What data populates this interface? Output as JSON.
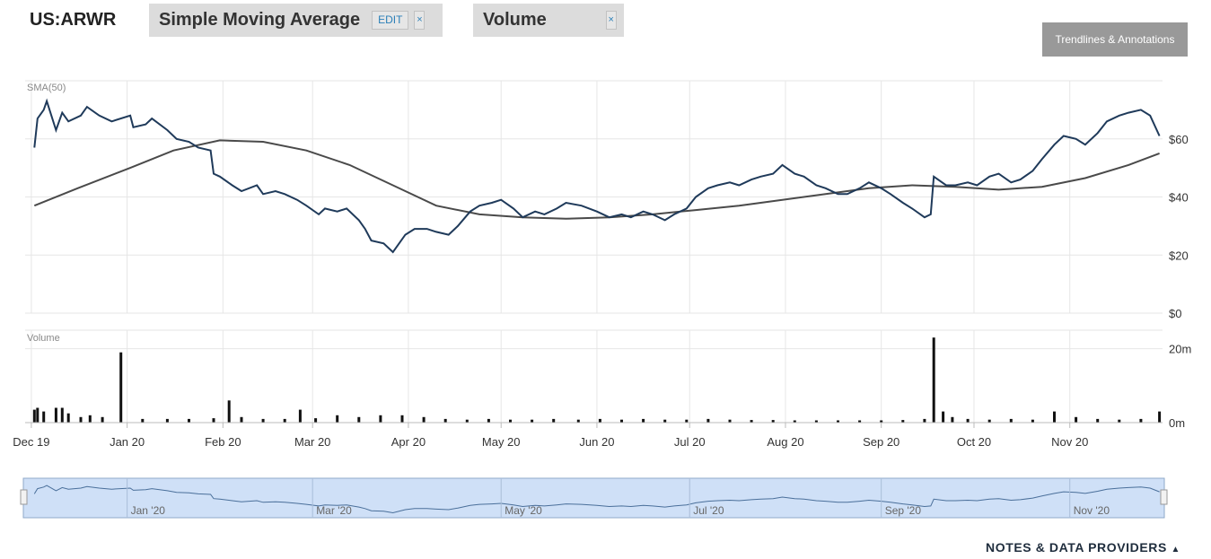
{
  "header": {
    "ticker": "US:ARWR",
    "sma_pill": {
      "label": "Simple Moving Average",
      "edit_label": "EDIT",
      "remove_label": "×"
    },
    "volume_pill": {
      "label": "Volume",
      "remove_label": "×"
    },
    "trendlines_button": "Trendlines & Annotations"
  },
  "footer": {
    "notes_link": "NOTES & DATA PROVIDERS"
  },
  "colors": {
    "price_line": "#1f3a5a",
    "sma_line": "#4a4a4a",
    "volume_bar": "#111111",
    "navigator_fill": "#cfe0f7",
    "navigator_border": "#8fa8c8",
    "grid": "#e6e6e6"
  },
  "chart_data": [
    {
      "type": "line",
      "panel": "price",
      "panel_label": "SMA(50)",
      "x_tick_labels": [
        "Dec 19",
        "Jan 20",
        "Feb 20",
        "Mar 20",
        "Apr 20",
        "May 20",
        "Jun 20",
        "Jul 20",
        "Aug 20",
        "Sep 20",
        "Oct 20",
        "Nov 20"
      ],
      "y_tick_labels": [
        "$0",
        "$20",
        "$40",
        "$60"
      ],
      "ylim": [
        0,
        80
      ],
      "grid": true,
      "series": [
        {
          "key": "price",
          "points": [
            [
              "2019-12-02",
              57
            ],
            [
              "2019-12-03",
              67
            ],
            [
              "2019-12-05",
              70
            ],
            [
              "2019-12-06",
              73
            ],
            [
              "2019-12-09",
              63
            ],
            [
              "2019-12-11",
              69
            ],
            [
              "2019-12-13",
              66
            ],
            [
              "2019-12-17",
              68
            ],
            [
              "2019-12-19",
              71
            ],
            [
              "2019-12-23",
              68
            ],
            [
              "2019-12-27",
              66
            ],
            [
              "2020-01-02",
              68
            ],
            [
              "2020-01-03",
              64
            ],
            [
              "2020-01-07",
              65
            ],
            [
              "2020-01-09",
              67
            ],
            [
              "2020-01-14",
              63
            ],
            [
              "2020-01-17",
              60
            ],
            [
              "2020-01-21",
              59
            ],
            [
              "2020-01-24",
              57
            ],
            [
              "2020-01-28",
              56
            ],
            [
              "2020-01-29",
              48
            ],
            [
              "2020-01-31",
              47
            ],
            [
              "2020-02-04",
              44
            ],
            [
              "2020-02-07",
              42
            ],
            [
              "2020-02-12",
              44
            ],
            [
              "2020-02-14",
              41
            ],
            [
              "2020-02-18",
              42
            ],
            [
              "2020-02-21",
              41
            ],
            [
              "2020-02-25",
              39
            ],
            [
              "2020-02-28",
              37
            ],
            [
              "2020-03-03",
              34
            ],
            [
              "2020-03-05",
              36
            ],
            [
              "2020-03-09",
              35
            ],
            [
              "2020-03-12",
              36
            ],
            [
              "2020-03-16",
              32
            ],
            [
              "2020-03-18",
              29
            ],
            [
              "2020-03-20",
              25
            ],
            [
              "2020-03-24",
              24
            ],
            [
              "2020-03-27",
              21
            ],
            [
              "2020-03-31",
              27
            ],
            [
              "2020-04-03",
              29
            ],
            [
              "2020-04-07",
              29
            ],
            [
              "2020-04-10",
              28
            ],
            [
              "2020-04-14",
              27
            ],
            [
              "2020-04-17",
              30
            ],
            [
              "2020-04-21",
              35
            ],
            [
              "2020-04-24",
              37
            ],
            [
              "2020-04-28",
              38
            ],
            [
              "2020-05-01",
              39
            ],
            [
              "2020-05-05",
              36
            ],
            [
              "2020-05-08",
              33
            ],
            [
              "2020-05-12",
              35
            ],
            [
              "2020-05-15",
              34
            ],
            [
              "2020-05-19",
              36
            ],
            [
              "2020-05-22",
              38
            ],
            [
              "2020-05-27",
              37
            ],
            [
              "2020-06-01",
              35
            ],
            [
              "2020-06-05",
              33
            ],
            [
              "2020-06-09",
              34
            ],
            [
              "2020-06-12",
              33
            ],
            [
              "2020-06-16",
              35
            ],
            [
              "2020-06-19",
              34
            ],
            [
              "2020-06-23",
              32
            ],
            [
              "2020-06-26",
              34
            ],
            [
              "2020-06-30",
              36
            ],
            [
              "2020-07-03",
              40
            ],
            [
              "2020-07-07",
              43
            ],
            [
              "2020-07-10",
              44
            ],
            [
              "2020-07-14",
              45
            ],
            [
              "2020-07-17",
              44
            ],
            [
              "2020-07-21",
              46
            ],
            [
              "2020-07-24",
              47
            ],
            [
              "2020-07-28",
              48
            ],
            [
              "2020-07-31",
              51
            ],
            [
              "2020-08-04",
              48
            ],
            [
              "2020-08-07",
              47
            ],
            [
              "2020-08-11",
              44
            ],
            [
              "2020-08-14",
              43
            ],
            [
              "2020-08-18",
              41
            ],
            [
              "2020-08-21",
              41
            ],
            [
              "2020-08-25",
              43
            ],
            [
              "2020-08-28",
              45
            ],
            [
              "2020-09-01",
              43
            ],
            [
              "2020-09-04",
              41
            ],
            [
              "2020-09-08",
              38
            ],
            [
              "2020-09-11",
              36
            ],
            [
              "2020-09-15",
              33
            ],
            [
              "2020-09-17",
              34
            ],
            [
              "2020-09-18",
              47
            ],
            [
              "2020-09-22",
              44
            ],
            [
              "2020-09-25",
              44
            ],
            [
              "2020-09-29",
              45
            ],
            [
              "2020-10-02",
              44
            ],
            [
              "2020-10-06",
              47
            ],
            [
              "2020-10-09",
              48
            ],
            [
              "2020-10-13",
              45
            ],
            [
              "2020-10-16",
              46
            ],
            [
              "2020-10-20",
              49
            ],
            [
              "2020-10-23",
              53
            ],
            [
              "2020-10-27",
              58
            ],
            [
              "2020-10-30",
              61
            ],
            [
              "2020-11-03",
              60
            ],
            [
              "2020-11-06",
              58
            ],
            [
              "2020-11-10",
              62
            ],
            [
              "2020-11-13",
              66
            ],
            [
              "2020-11-17",
              68
            ],
            [
              "2020-11-20",
              69
            ],
            [
              "2020-11-24",
              70
            ],
            [
              "2020-11-27",
              68
            ],
            [
              "2020-11-30",
              61
            ]
          ]
        },
        {
          "key": "sma50",
          "points": [
            [
              "2019-12-02",
              37
            ],
            [
              "2019-12-16",
              43
            ],
            [
              "2020-01-02",
              50
            ],
            [
              "2020-01-16",
              56
            ],
            [
              "2020-01-31",
              59.5
            ],
            [
              "2020-02-14",
              59
            ],
            [
              "2020-02-28",
              56
            ],
            [
              "2020-03-13",
              51
            ],
            [
              "2020-03-27",
              44
            ],
            [
              "2020-04-10",
              37
            ],
            [
              "2020-04-24",
              34
            ],
            [
              "2020-05-08",
              33
            ],
            [
              "2020-05-22",
              32.5
            ],
            [
              "2020-06-05",
              33
            ],
            [
              "2020-06-19",
              34
            ],
            [
              "2020-07-03",
              35.5
            ],
            [
              "2020-07-17",
              37
            ],
            [
              "2020-07-31",
              39
            ],
            [
              "2020-08-14",
              41
            ],
            [
              "2020-08-28",
              43
            ],
            [
              "2020-09-11",
              44
            ],
            [
              "2020-09-25",
              43.5
            ],
            [
              "2020-10-09",
              42.5
            ],
            [
              "2020-10-23",
              43.5
            ],
            [
              "2020-11-06",
              46.5
            ],
            [
              "2020-11-20",
              51
            ],
            [
              "2020-11-30",
              55
            ]
          ]
        }
      ]
    },
    {
      "type": "bar",
      "panel": "volume",
      "panel_label": "Volume",
      "y_tick_labels": [
        "0m",
        "20m"
      ],
      "ylim": [
        0,
        25
      ],
      "series": [
        {
          "key": "volume",
          "points": [
            [
              "2019-12-02",
              3.5
            ],
            [
              "2019-12-03",
              4
            ],
            [
              "2019-12-05",
              3
            ],
            [
              "2019-12-09",
              4
            ],
            [
              "2019-12-11",
              4
            ],
            [
              "2019-12-13",
              2.5
            ],
            [
              "2019-12-17",
              1.5
            ],
            [
              "2019-12-20",
              2
            ],
            [
              "2019-12-24",
              1.5
            ],
            [
              "2019-12-30",
              19
            ],
            [
              "2020-01-06",
              1
            ],
            [
              "2020-01-14",
              1
            ],
            [
              "2020-01-21",
              1
            ],
            [
              "2020-01-29",
              1.2
            ],
            [
              "2020-02-03",
              6
            ],
            [
              "2020-02-07",
              1.5
            ],
            [
              "2020-02-14",
              1
            ],
            [
              "2020-02-21",
              1
            ],
            [
              "2020-02-26",
              3.5
            ],
            [
              "2020-03-02",
              1.2
            ],
            [
              "2020-03-09",
              2
            ],
            [
              "2020-03-16",
              1.5
            ],
            [
              "2020-03-23",
              2
            ],
            [
              "2020-03-30",
              2
            ],
            [
              "2020-04-06",
              1.5
            ],
            [
              "2020-04-13",
              1
            ],
            [
              "2020-04-20",
              0.8
            ],
            [
              "2020-04-27",
              1
            ],
            [
              "2020-05-04",
              0.8
            ],
            [
              "2020-05-11",
              0.8
            ],
            [
              "2020-05-18",
              1
            ],
            [
              "2020-05-26",
              0.8
            ],
            [
              "2020-06-02",
              1
            ],
            [
              "2020-06-09",
              0.8
            ],
            [
              "2020-06-16",
              1
            ],
            [
              "2020-06-23",
              0.8
            ],
            [
              "2020-06-30",
              0.8
            ],
            [
              "2020-07-07",
              1
            ],
            [
              "2020-07-14",
              0.8
            ],
            [
              "2020-07-21",
              0.7
            ],
            [
              "2020-07-28",
              0.7
            ],
            [
              "2020-08-04",
              0.6
            ],
            [
              "2020-08-11",
              0.6
            ],
            [
              "2020-08-18",
              0.6
            ],
            [
              "2020-08-25",
              0.6
            ],
            [
              "2020-09-01",
              0.6
            ],
            [
              "2020-09-08",
              0.7
            ],
            [
              "2020-09-15",
              1
            ],
            [
              "2020-09-18",
              23
            ],
            [
              "2020-09-21",
              3
            ],
            [
              "2020-09-24",
              1.5
            ],
            [
              "2020-09-29",
              1
            ],
            [
              "2020-10-06",
              0.8
            ],
            [
              "2020-10-13",
              1
            ],
            [
              "2020-10-20",
              0.8
            ],
            [
              "2020-10-27",
              3
            ],
            [
              "2020-11-03",
              1.5
            ],
            [
              "2020-11-10",
              1
            ],
            [
              "2020-11-17",
              0.8
            ],
            [
              "2020-11-24",
              1
            ],
            [
              "2020-11-30",
              3
            ]
          ]
        }
      ]
    },
    {
      "type": "area",
      "panel": "navigator",
      "x_tick_labels": [
        "Jan '20",
        "Mar '20",
        "May '20",
        "Jul '20",
        "Sep '20",
        "Nov '20"
      ]
    }
  ]
}
